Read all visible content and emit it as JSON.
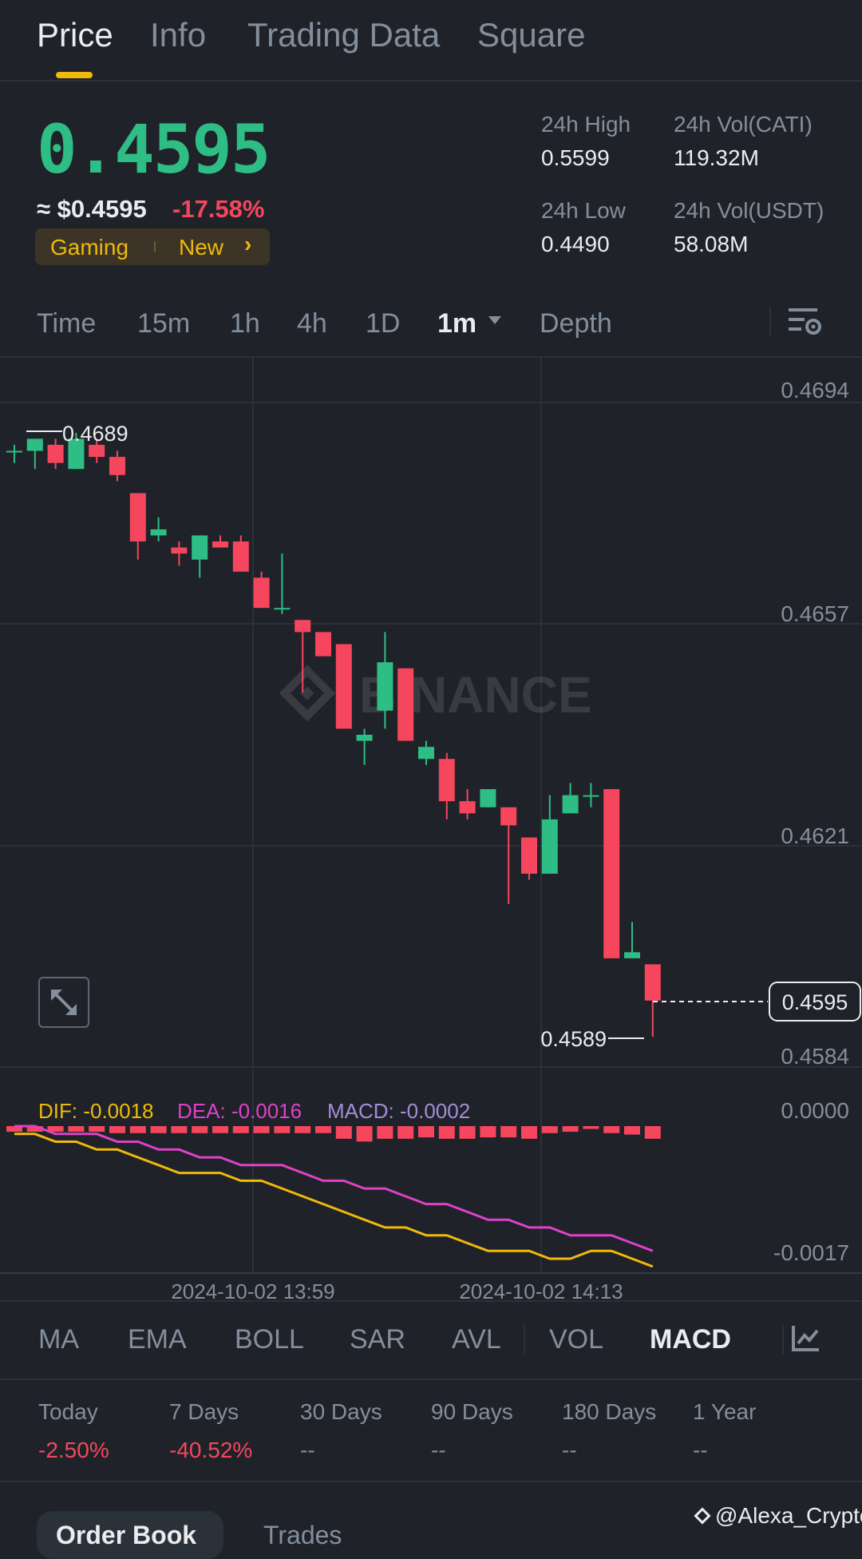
{
  "tabs": [
    {
      "label": "Price",
      "active": true
    },
    {
      "label": "Info",
      "active": false
    },
    {
      "label": "Trading Data",
      "active": false
    },
    {
      "label": "Square",
      "active": false
    }
  ],
  "ticker": {
    "price": "0.4595",
    "usd_price": "≈ $0.4595",
    "change_pct": "-17.58%",
    "tag_category": "Gaming",
    "tag_new": "New",
    "tag_chevron": "›"
  },
  "stats": {
    "high_label": "24h High",
    "high_value": "0.5599",
    "low_label": "24h Low",
    "low_value": "0.4490",
    "vol_base_label": "24h Vol(CATI)",
    "vol_base_value": "119.32M",
    "vol_quote_label": "24h Vol(USDT)",
    "vol_quote_value": "58.08M"
  },
  "intervals": [
    "Time",
    "15m",
    "1h",
    "4h",
    "1D",
    "1m",
    "Depth"
  ],
  "active_interval": "1m",
  "chart_data": {
    "type": "candlestick",
    "interval": "1m",
    "price_axis_ticks": [
      "0.4694",
      "0.4657",
      "0.4621",
      "0.4584"
    ],
    "ylim": [
      0.4584,
      0.4694
    ],
    "high_marker": "0.4689",
    "low_marker": "0.4589",
    "last_price_label": "0.4595",
    "watermark": "BINANCE",
    "time_labels": [
      "2024-10-02 13:59",
      "2024-10-02 14:13"
    ],
    "candles": [
      {
        "o": 0.4686,
        "h": 0.4687,
        "l": 0.4684,
        "c": 0.4686
      },
      {
        "o": 0.4686,
        "h": 0.4688,
        "l": 0.4683,
        "c": 0.4688
      },
      {
        "o": 0.4687,
        "h": 0.4688,
        "l": 0.4683,
        "c": 0.4684
      },
      {
        "o": 0.4683,
        "h": 0.4689,
        "l": 0.4683,
        "c": 0.4688
      },
      {
        "o": 0.4687,
        "h": 0.4688,
        "l": 0.4684,
        "c": 0.4685
      },
      {
        "o": 0.4685,
        "h": 0.4686,
        "l": 0.4681,
        "c": 0.4682
      },
      {
        "o": 0.4679,
        "h": 0.4679,
        "l": 0.4668,
        "c": 0.4671
      },
      {
        "o": 0.4672,
        "h": 0.4675,
        "l": 0.4671,
        "c": 0.4673
      },
      {
        "o": 0.467,
        "h": 0.4671,
        "l": 0.4667,
        "c": 0.4669
      },
      {
        "o": 0.4668,
        "h": 0.4672,
        "l": 0.4665,
        "c": 0.4672
      },
      {
        "o": 0.4671,
        "h": 0.4672,
        "l": 0.467,
        "c": 0.467
      },
      {
        "o": 0.4671,
        "h": 0.4672,
        "l": 0.4666,
        "c": 0.4666
      },
      {
        "o": 0.4665,
        "h": 0.4666,
        "l": 0.466,
        "c": 0.466
      },
      {
        "o": 0.466,
        "h": 0.4669,
        "l": 0.4659,
        "c": 0.466
      },
      {
        "o": 0.4658,
        "h": 0.4658,
        "l": 0.4646,
        "c": 0.4656
      },
      {
        "o": 0.4656,
        "h": 0.4656,
        "l": 0.4652,
        "c": 0.4652
      },
      {
        "o": 0.4654,
        "h": 0.4654,
        "l": 0.464,
        "c": 0.464
      },
      {
        "o": 0.4638,
        "h": 0.464,
        "l": 0.4634,
        "c": 0.4639
      },
      {
        "o": 0.4643,
        "h": 0.4656,
        "l": 0.464,
        "c": 0.4651
      },
      {
        "o": 0.465,
        "h": 0.465,
        "l": 0.4638,
        "c": 0.4638
      },
      {
        "o": 0.4635,
        "h": 0.4638,
        "l": 0.4634,
        "c": 0.4637
      },
      {
        "o": 0.4635,
        "h": 0.4636,
        "l": 0.4625,
        "c": 0.4628
      },
      {
        "o": 0.4628,
        "h": 0.463,
        "l": 0.4625,
        "c": 0.4626
      },
      {
        "o": 0.4627,
        "h": 0.463,
        "l": 0.4627,
        "c": 0.463
      },
      {
        "o": 0.4627,
        "h": 0.4627,
        "l": 0.4611,
        "c": 0.4624
      },
      {
        "o": 0.4622,
        "h": 0.4622,
        "l": 0.4615,
        "c": 0.4616
      },
      {
        "o": 0.4616,
        "h": 0.4629,
        "l": 0.4616,
        "c": 0.4625
      },
      {
        "o": 0.4626,
        "h": 0.4631,
        "l": 0.4626,
        "c": 0.4629
      },
      {
        "o": 0.4629,
        "h": 0.4631,
        "l": 0.4627,
        "c": 0.4629
      },
      {
        "o": 0.463,
        "h": 0.463,
        "l": 0.4602,
        "c": 0.4602
      },
      {
        "o": 0.4602,
        "h": 0.4608,
        "l": 0.4602,
        "c": 0.4603
      },
      {
        "o": 0.4601,
        "h": 0.4601,
        "l": 0.4589,
        "c": 0.4595
      }
    ]
  },
  "macd": {
    "dif_label": "DIF: -0.0018",
    "dea_label": "DEA: -0.0016",
    "macd_label": "MACD: -0.0002",
    "axis_ticks": [
      "0.0000",
      "-0.0017"
    ],
    "dif": [
      -0.0001,
      -0.0001,
      -0.0002,
      -0.0002,
      -0.0003,
      -0.0003,
      -0.0004,
      -0.0005,
      -0.0006,
      -0.0006,
      -0.0006,
      -0.0007,
      -0.0007,
      -0.0008,
      -0.0009,
      -0.001,
      -0.0011,
      -0.0012,
      -0.0013,
      -0.0013,
      -0.0014,
      -0.0014,
      -0.0015,
      -0.0016,
      -0.0016,
      -0.0016,
      -0.0017,
      -0.0017,
      -0.0016,
      -0.0016,
      -0.0017,
      -0.0018
    ],
    "dea": [
      -0.0,
      -0.0,
      -0.0001,
      -0.0001,
      -0.0001,
      -0.0002,
      -0.0002,
      -0.0003,
      -0.0003,
      -0.0004,
      -0.0004,
      -0.0005,
      -0.0005,
      -0.0005,
      -0.0006,
      -0.0007,
      -0.0007,
      -0.0008,
      -0.0008,
      -0.0009,
      -0.001,
      -0.001,
      -0.0011,
      -0.0012,
      -0.0012,
      -0.0013,
      -0.0013,
      -0.0014,
      -0.0014,
      -0.0014,
      -0.0015,
      -0.0016
    ],
    "hist": [
      -8e-05,
      -8e-05,
      -8e-05,
      -8e-05,
      -8e-05,
      -0.0001,
      -0.0001,
      -0.0001,
      -0.0001,
      -0.0001,
      -0.0001,
      -0.0001,
      -0.0001,
      -0.0001,
      -0.0001,
      -0.0001,
      -0.00018,
      -0.00022,
      -0.00018,
      -0.00018,
      -0.00016,
      -0.00018,
      -0.00018,
      -0.00016,
      -0.00016,
      -0.00018,
      -0.0001,
      -8e-05,
      -4e-05,
      -0.0001,
      -0.00012,
      -0.00018
    ]
  },
  "indicators": [
    "MA",
    "EMA",
    "BOLL",
    "SAR",
    "AVL",
    "VOL",
    "MACD"
  ],
  "active_indicator": "MACD",
  "performance": [
    {
      "label": "Today",
      "value": "-2.50%"
    },
    {
      "label": "7 Days",
      "value": "-40.52%"
    },
    {
      "label": "30 Days",
      "value": "--"
    },
    {
      "label": "90 Days",
      "value": "--"
    },
    {
      "label": "180 Days",
      "value": "--"
    },
    {
      "label": "1 Year",
      "value": "--"
    }
  ],
  "bottom_tabs": [
    "Order Book",
    "Trades"
  ],
  "credit": "@Alexa_Crypto",
  "colors": {
    "up": "#2ebd85",
    "down": "#f6465d",
    "accent": "#f0b90b",
    "dif": "#f0b90b",
    "dea": "#e040c8",
    "macd": "#a68bd8"
  }
}
